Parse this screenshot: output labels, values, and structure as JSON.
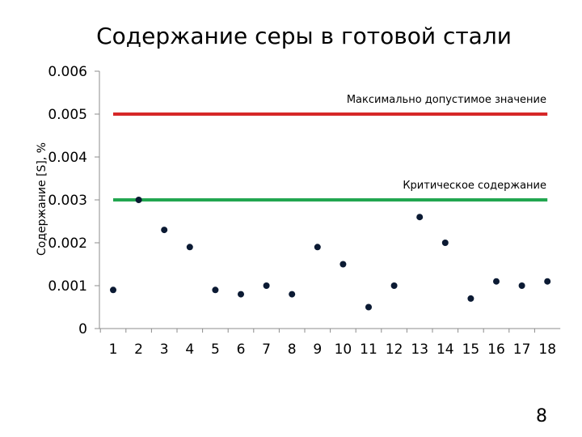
{
  "slide": {
    "title": "Содержание серы в готовой стали",
    "page_number": "8"
  },
  "chart_data": {
    "type": "scatter",
    "title": "Содержание серы в готовой стали",
    "xlabel": "",
    "ylabel": "Содержание [S], %",
    "x": [
      1,
      2,
      3,
      4,
      5,
      6,
      7,
      8,
      9,
      10,
      11,
      12,
      13,
      14,
      15,
      16,
      17,
      18
    ],
    "x_tick_labels": [
      "1",
      "2",
      "3",
      "4",
      "5",
      "6",
      "7",
      "8",
      "9",
      "10",
      "11",
      "12",
      "13",
      "14",
      "15",
      "16",
      "17",
      "18"
    ],
    "y": [
      0.0009,
      0.003,
      0.0023,
      0.0019,
      0.0009,
      0.0008,
      0.001,
      0.0008,
      0.0019,
      0.0015,
      0.0005,
      0.001,
      0.0026,
      0.002,
      0.0007,
      0.0011,
      0.001,
      0.0011
    ],
    "ylim": [
      0,
      0.006
    ],
    "y_ticks": [
      0,
      0.001,
      0.002,
      0.003,
      0.004,
      0.005,
      0.006
    ],
    "y_tick_labels": [
      "0",
      "0.001",
      "0.002",
      "0.003",
      "0.004",
      "0.005",
      "0.006"
    ],
    "grid": false,
    "marker_color": "#0b1a33",
    "reference_lines": [
      {
        "name": "Максимально допустимое значение",
        "value": 0.005,
        "color": "#d62728"
      },
      {
        "name": "Критическое содержание",
        "value": 0.003,
        "color": "#22a650"
      }
    ]
  }
}
